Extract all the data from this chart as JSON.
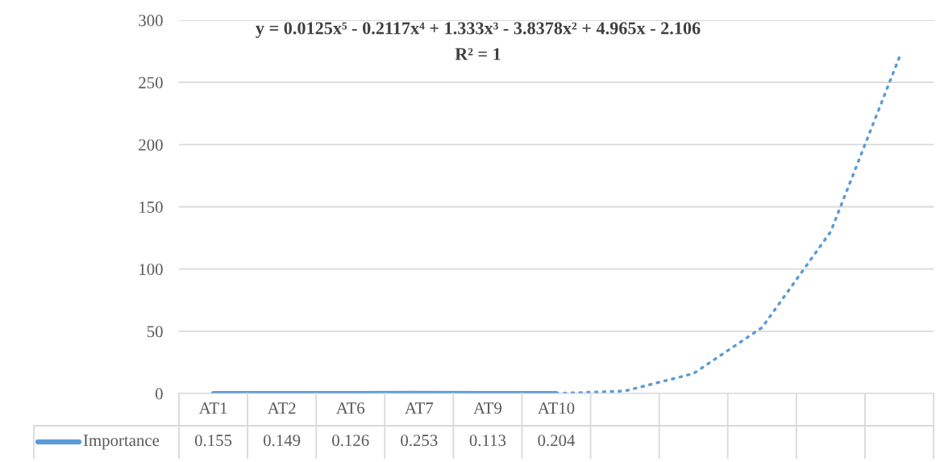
{
  "chart_data": {
    "type": "line",
    "annotations": [
      "y = 0.0125x⁵ - 0.2117x⁴ + 1.333x³ - 3.8378x² + 4.965x - 2.106",
      "R² = 1"
    ],
    "categories": [
      "AT1",
      "AT2",
      "AT6",
      "AT7",
      "AT9",
      "AT10",
      null,
      null,
      null,
      null,
      null
    ],
    "series": [
      {
        "name": "Importance",
        "color": "#5b9bd5",
        "values": [
          0.155,
          0.149,
          0.126,
          0.253,
          0.113,
          0.204,
          null,
          null,
          null,
          null,
          null
        ],
        "line_style": "solid",
        "value_labels": [
          "0.155",
          "0.149",
          "0.126",
          "0.253",
          "0.113",
          "0.204",
          null,
          null,
          null,
          null,
          null
        ]
      },
      {
        "type": "line",
        "color": "#5b9bd5",
        "line_style": "dotted",
        "values": [
          null,
          null,
          null,
          null,
          null,
          0,
          2,
          16,
          53,
          130,
          270
        ]
      }
    ],
    "ylim": [
      0,
      300
    ],
    "yticks": [
      0,
      50,
      100,
      150,
      200,
      250,
      300
    ],
    "grid": "y",
    "legend": "bottom"
  }
}
